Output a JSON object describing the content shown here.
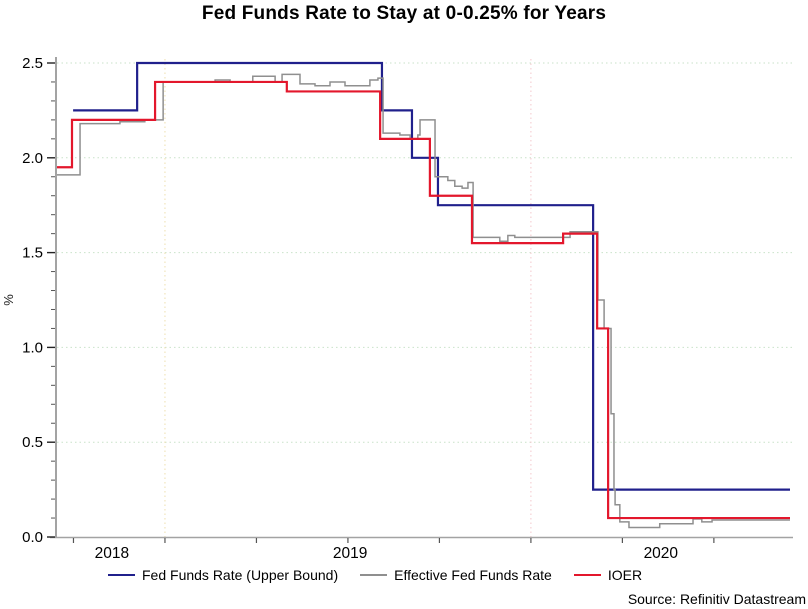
{
  "title": "Fed Funds Rate to Stay at 0-0.25% for Years",
  "source": "Source: Refinitiv Datastream",
  "legend": [
    {
      "label": "Fed Funds Rate (Upper Bound)",
      "color": "#20208c"
    },
    {
      "label": "Effective Fed Funds Rate",
      "color": "#8f8f8f"
    },
    {
      "label": "IOER",
      "color": "#e3172c"
    }
  ],
  "chart_data": {
    "type": "line",
    "step": true,
    "title": "Fed Funds Rate to Stay at 0-0.25% for Years",
    "xlabel": "",
    "ylabel": "%",
    "xlim": [
      2018.705,
      2020.708
    ],
    "ylim": [
      0,
      2.5
    ],
    "y_major_ticks": [
      0,
      0.5,
      1.0,
      1.5,
      2.0,
      2.5
    ],
    "y_tick_labels": [
      "0.0",
      "0.5",
      "1.0",
      "1.5",
      "2.0",
      "2.5"
    ],
    "y_minor_step": 0.1,
    "y_gridlines": [
      0.5,
      1.0,
      1.5,
      2.0,
      2.5
    ],
    "grid_color_h": "#c9e2c9",
    "x_gridlines": [
      {
        "x": 2019.0,
        "color": "#eedfae"
      },
      {
        "x": 2020.0,
        "color": "#f4c8cc"
      }
    ],
    "x_ticks": [
      2018.75,
      2019.0,
      2019.25,
      2019.5,
      2019.75,
      2020.0,
      2020.25,
      2020.5
    ],
    "x_year_labels": [
      {
        "label": "2018",
        "x": 2018.855
      },
      {
        "label": "2019",
        "x": 2019.506
      },
      {
        "label": "2020",
        "x": 2020.355
      }
    ],
    "legend_position": "bottom",
    "axis_color": "#a3a3a3",
    "series": [
      {
        "id": "fed-funds-upper-bound",
        "name": "Fed Funds Rate (Upper Bound)",
        "color": "#20208c",
        "width": 2.2,
        "points": [
          [
            2018.749,
            2.25
          ],
          [
            2018.924,
            2.5
          ],
          [
            2019.593,
            2.25
          ],
          [
            2019.675,
            2.0
          ],
          [
            2019.746,
            1.75
          ],
          [
            2020.17,
            0.25
          ],
          [
            2020.708,
            0.25
          ]
        ]
      },
      {
        "id": "effective-fed-funds-rate",
        "name": "Effective Fed Funds Rate",
        "color": "#8f8f8f",
        "width": 1.5,
        "points": [
          [
            2018.705,
            1.91
          ],
          [
            2018.768,
            2.18
          ],
          [
            2018.877,
            2.19
          ],
          [
            2018.945,
            2.2
          ],
          [
            2018.995,
            2.4
          ],
          [
            2019.123,
            2.4
          ],
          [
            2019.137,
            2.41
          ],
          [
            2019.178,
            2.4
          ],
          [
            2019.24,
            2.43
          ],
          [
            2019.287,
            2.43
          ],
          [
            2019.301,
            2.4
          ],
          [
            2019.32,
            2.44
          ],
          [
            2019.35,
            2.44
          ],
          [
            2019.369,
            2.39
          ],
          [
            2019.41,
            2.38
          ],
          [
            2019.451,
            2.4
          ],
          [
            2019.492,
            2.38
          ],
          [
            2019.533,
            2.38
          ],
          [
            2019.56,
            2.41
          ],
          [
            2019.582,
            2.42
          ],
          [
            2019.596,
            2.13
          ],
          [
            2019.642,
            2.12
          ],
          [
            2019.67,
            2.1
          ],
          [
            2019.691,
            2.12
          ],
          [
            2019.697,
            2.2
          ],
          [
            2019.732,
            2.2
          ],
          [
            2019.738,
            1.9
          ],
          [
            2019.773,
            1.88
          ],
          [
            2019.792,
            1.85
          ],
          [
            2019.812,
            1.84
          ],
          [
            2019.828,
            1.87
          ],
          [
            2019.842,
            1.58
          ],
          [
            2019.915,
            1.56
          ],
          [
            2019.937,
            1.59
          ],
          [
            2019.956,
            1.58
          ],
          [
            2020.038,
            1.58
          ],
          [
            2020.107,
            1.61
          ],
          [
            2020.161,
            1.61
          ],
          [
            2020.183,
            1.25
          ],
          [
            2020.197,
            1.25
          ],
          [
            2020.2,
            1.1
          ],
          [
            2020.216,
            1.1
          ],
          [
            2020.219,
            0.65
          ],
          [
            2020.224,
            0.65
          ],
          [
            2020.227,
            0.25
          ],
          [
            2020.23,
            0.17
          ],
          [
            2020.24,
            0.17
          ],
          [
            2020.243,
            0.08
          ],
          [
            2020.265,
            0.08
          ],
          [
            2020.268,
            0.05
          ],
          [
            2020.347,
            0.05
          ],
          [
            2020.352,
            0.07
          ],
          [
            2020.44,
            0.07
          ],
          [
            2020.443,
            0.095
          ],
          [
            2020.464,
            0.095
          ],
          [
            2020.467,
            0.08
          ],
          [
            2020.489,
            0.08
          ],
          [
            2020.495,
            0.09
          ],
          [
            2020.708,
            0.09
          ]
        ]
      },
      {
        "id": "ioer",
        "name": "IOER",
        "color": "#e3172c",
        "width": 2.2,
        "points": [
          [
            2018.705,
            1.95
          ],
          [
            2018.746,
            2.2
          ],
          [
            2018.973,
            2.4
          ],
          [
            2019.333,
            2.35
          ],
          [
            2019.588,
            2.1
          ],
          [
            2019.724,
            1.8
          ],
          [
            2019.839,
            1.55
          ],
          [
            2020.088,
            1.6
          ],
          [
            2020.181,
            1.1
          ],
          [
            2020.211,
            0.1
          ],
          [
            2020.708,
            0.1
          ]
        ]
      }
    ]
  }
}
